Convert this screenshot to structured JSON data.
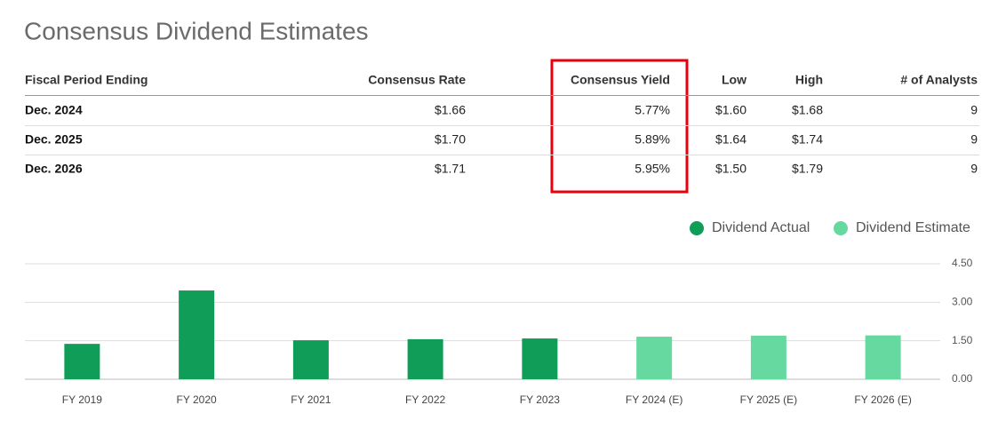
{
  "title": "Consensus Dividend Estimates",
  "table": {
    "headers": [
      "Fiscal Period Ending",
      "Consensus Rate",
      "Consensus Yield",
      "Low",
      "High",
      "# of Analysts"
    ],
    "rows": [
      [
        "Dec. 2024",
        "$1.66",
        "5.77%",
        "$1.60",
        "$1.68",
        "9"
      ],
      [
        "Dec. 2025",
        "$1.70",
        "5.89%",
        "$1.64",
        "$1.74",
        "9"
      ],
      [
        "Dec. 2026",
        "$1.71",
        "5.95%",
        "$1.50",
        "$1.79",
        "9"
      ]
    ]
  },
  "chart_data": {
    "type": "bar",
    "categories": [
      "FY 2019",
      "FY 2020",
      "FY 2021",
      "FY 2022",
      "FY 2023",
      "FY 2024 (E)",
      "FY 2025 (E)",
      "FY 2026 (E)"
    ],
    "series": [
      {
        "name": "Dividend Actual",
        "color": "#0f9d58",
        "values": [
          1.38,
          3.46,
          1.52,
          1.56,
          1.59,
          null,
          null,
          null
        ]
      },
      {
        "name": "Dividend Estimate",
        "color": "#66d9a0",
        "values": [
          null,
          null,
          null,
          null,
          null,
          1.66,
          1.7,
          1.71
        ]
      }
    ],
    "ylim": [
      0,
      4.5
    ],
    "yticks": [
      {
        "value": 0,
        "label": "0.00"
      },
      {
        "value": 1.5,
        "label": "1.50"
      },
      {
        "value": 3,
        "label": "3.00"
      },
      {
        "value": 4.5,
        "label": "4.50"
      }
    ],
    "grid": true,
    "legend": "top-right"
  }
}
